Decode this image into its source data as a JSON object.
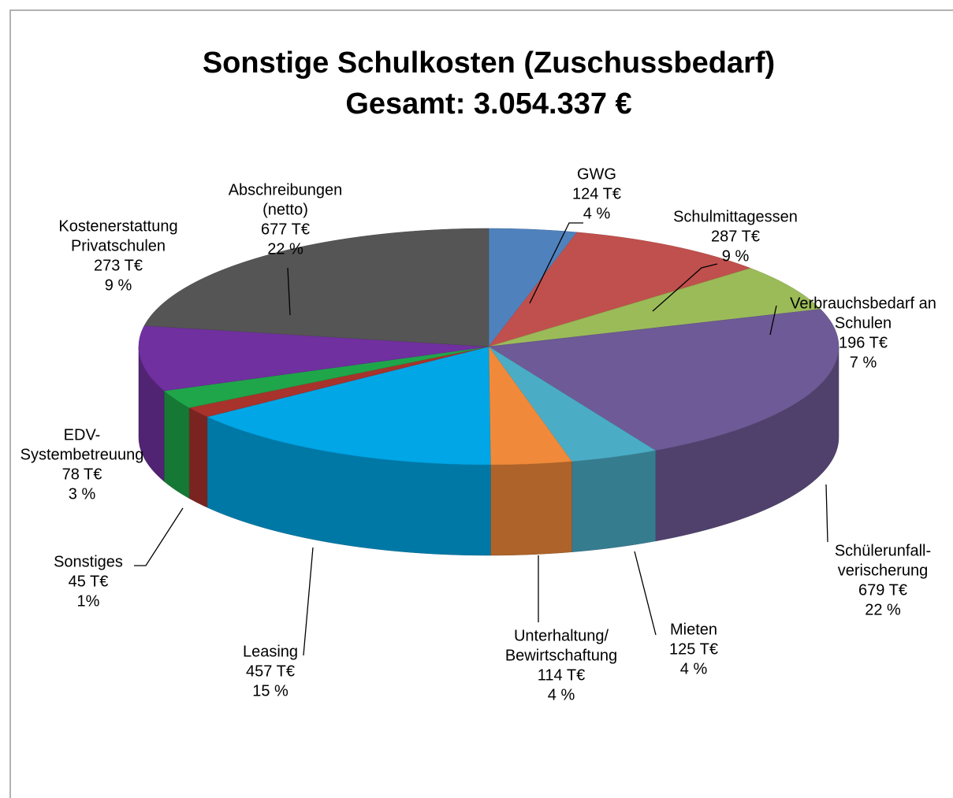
{
  "chart_data": {
    "type": "pie3d",
    "title": "Sonstige Schulkosten (Zuschussbedarf)",
    "subtitle": "Gesamt: 3.054.337 €",
    "categories": [
      [
        "GWG"
      ],
      [
        "Schulmittagessen"
      ],
      [
        "Verbrauchsbedarf an",
        "Schulen"
      ],
      [
        "Schülerunfall-",
        "verischerung"
      ],
      [
        "Mieten"
      ],
      [
        "Unterhaltung/",
        "Bewirtschaftung"
      ],
      [
        "Leasing"
      ],
      [
        "Sonstiges"
      ],
      [
        "EDV-",
        "Systembetreuung"
      ],
      [
        "Kostenerstattung",
        "Privatschulen"
      ],
      [
        "Abschreibungen",
        "(netto)"
      ]
    ],
    "values": [
      124,
      287,
      196,
      679,
      125,
      114,
      457,
      45,
      78,
      273,
      677
    ],
    "value_labels": [
      "124 T€",
      "287 T€",
      "196 T€",
      "679 T€",
      "125 T€",
      "114 T€",
      "457 T€",
      "45 T€",
      "78 T€",
      "273 T€",
      "677 T€"
    ],
    "share_labels": [
      "4 %",
      "9 %",
      "7 %",
      "22 %",
      "4 %",
      "4 %",
      "15 %",
      "1%",
      "3 %",
      "9 %",
      "22 %"
    ],
    "colors": [
      "#4f81bd",
      "#c0504d",
      "#9bbb59",
      "#6e5a96",
      "#4bacc6",
      "#f08a3a",
      "#00a6e6",
      "#a8322c",
      "#1fa64a",
      "#7030a0",
      "#555555"
    ]
  }
}
